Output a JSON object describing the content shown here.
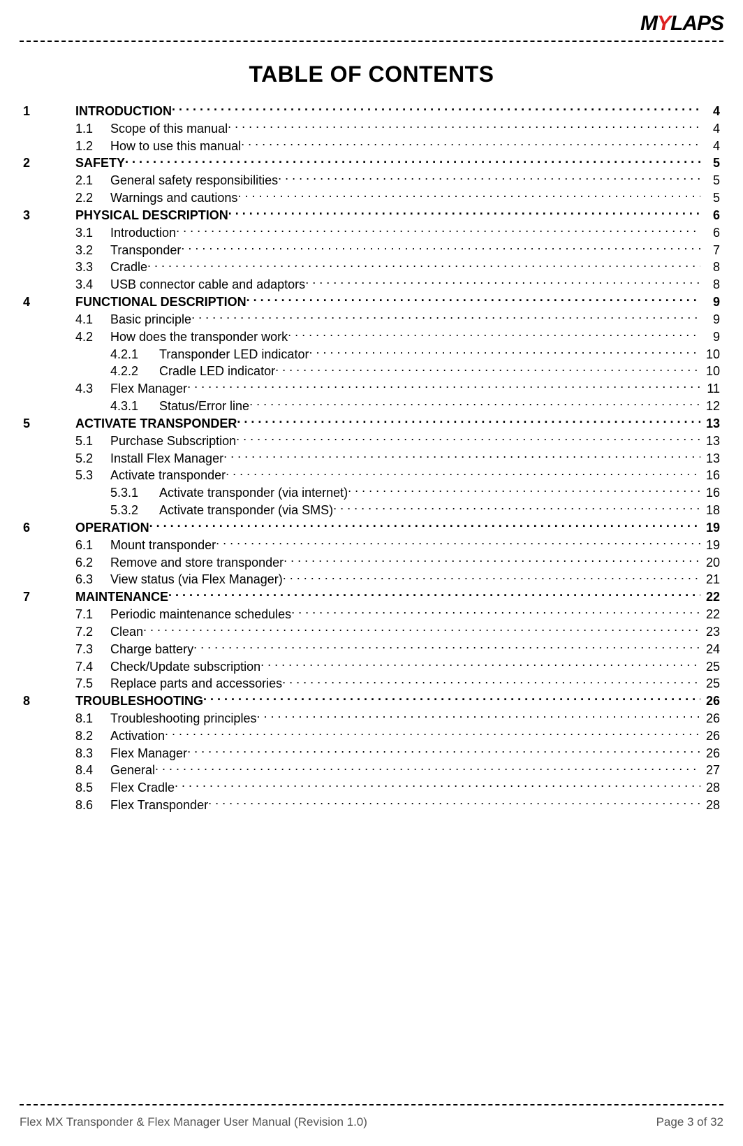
{
  "header": {
    "logo_text_prefix": "M",
    "logo_text_y": "Y",
    "logo_text_suffix": "LAPS"
  },
  "title": "TABLE OF CONTENTS",
  "toc": [
    {
      "level": 1,
      "num": "1",
      "label": "INTRODUCTION",
      "page": "4"
    },
    {
      "level": 2,
      "num": "1.1",
      "label": "Scope of this manual",
      "page": "4"
    },
    {
      "level": 2,
      "num": "1.2",
      "label": "How to use this manual",
      "page": "4"
    },
    {
      "level": 1,
      "num": "2",
      "label": "SAFETY",
      "page": "5"
    },
    {
      "level": 2,
      "num": "2.1",
      "label": "General safety responsibilities",
      "page": "5"
    },
    {
      "level": 2,
      "num": "2.2",
      "label": "Warnings and cautions",
      "page": "5"
    },
    {
      "level": 1,
      "num": "3",
      "label": "PHYSICAL DESCRIPTION",
      "page": "6"
    },
    {
      "level": 2,
      "num": "3.1",
      "label": "Introduction",
      "page": "6"
    },
    {
      "level": 2,
      "num": "3.2",
      "label": "Transponder",
      "page": "7"
    },
    {
      "level": 2,
      "num": "3.3",
      "label": "Cradle",
      "page": "8"
    },
    {
      "level": 2,
      "num": "3.4",
      "label": "USB connector cable and adaptors",
      "page": "8"
    },
    {
      "level": 1,
      "num": "4",
      "label": "FUNCTIONAL DESCRIPTION",
      "page": "9"
    },
    {
      "level": 2,
      "num": "4.1",
      "label": "Basic principle",
      "page": "9"
    },
    {
      "level": 2,
      "num": "4.2",
      "label": "How does the transponder work",
      "page": "9"
    },
    {
      "level": 3,
      "num": "4.2.1",
      "label": "Transponder LED indicator",
      "page": "10"
    },
    {
      "level": 3,
      "num": "4.2.2",
      "label": "Cradle LED indicator",
      "page": "10"
    },
    {
      "level": 2,
      "num": "4.3",
      "label": "Flex Manager",
      "page": "11"
    },
    {
      "level": 3,
      "num": "4.3.1",
      "label": "Status/Error line",
      "page": "12"
    },
    {
      "level": 1,
      "num": "5",
      "label": "ACTIVATE TRANSPONDER",
      "page": "13"
    },
    {
      "level": 2,
      "num": "5.1",
      "label": "Purchase Subscription",
      "page": "13"
    },
    {
      "level": 2,
      "num": "5.2",
      "label": "Install Flex Manager",
      "page": "13"
    },
    {
      "level": 2,
      "num": "5.3",
      "label": "Activate transponder",
      "page": "16"
    },
    {
      "level": 3,
      "num": "5.3.1",
      "label": "Activate transponder (via internet)",
      "page": "16"
    },
    {
      "level": 3,
      "num": "5.3.2",
      "label": "Activate transponder (via SMS)",
      "page": "18"
    },
    {
      "level": 1,
      "num": "6",
      "label": "OPERATION",
      "page": "19"
    },
    {
      "level": 2,
      "num": "6.1",
      "label": "Mount transponder",
      "page": "19"
    },
    {
      "level": 2,
      "num": "6.2",
      "label": "Remove and store transponder",
      "page": "20"
    },
    {
      "level": 2,
      "num": "6.3",
      "label": "View status (via Flex Manager)",
      "page": "21"
    },
    {
      "level": 1,
      "num": "7",
      "label": "MAINTENANCE",
      "page": "22"
    },
    {
      "level": 2,
      "num": "7.1",
      "label": "Periodic maintenance schedules",
      "page": "22"
    },
    {
      "level": 2,
      "num": "7.2",
      "label": "Clean",
      "page": "23"
    },
    {
      "level": 2,
      "num": "7.3",
      "label": "Charge battery",
      "page": "24"
    },
    {
      "level": 2,
      "num": "7.4",
      "label": "Check/Update subscription",
      "page": "25"
    },
    {
      "level": 2,
      "num": "7.5",
      "label": "Replace parts and accessories",
      "page": "25"
    },
    {
      "level": 1,
      "num": "8",
      "label": "TROUBLESHOOTING",
      "page": "26"
    },
    {
      "level": 2,
      "num": "8.1",
      "label": "Troubleshooting principles",
      "page": "26"
    },
    {
      "level": 2,
      "num": "8.2",
      "label": "Activation",
      "page": "26"
    },
    {
      "level": 2,
      "num": "8.3",
      "label": "Flex Manager",
      "page": "26"
    },
    {
      "level": 2,
      "num": "8.4",
      "label": "General",
      "page": "27"
    },
    {
      "level": 2,
      "num": "8.5",
      "label": "Flex Cradle",
      "page": "28"
    },
    {
      "level": 2,
      "num": "8.6",
      "label": "Flex Transponder",
      "page": "28"
    }
  ],
  "footer": {
    "left": "Flex MX Transponder & Flex Manager User Manual  (Revision 1.0)",
    "right": "Page 3 of 32"
  }
}
